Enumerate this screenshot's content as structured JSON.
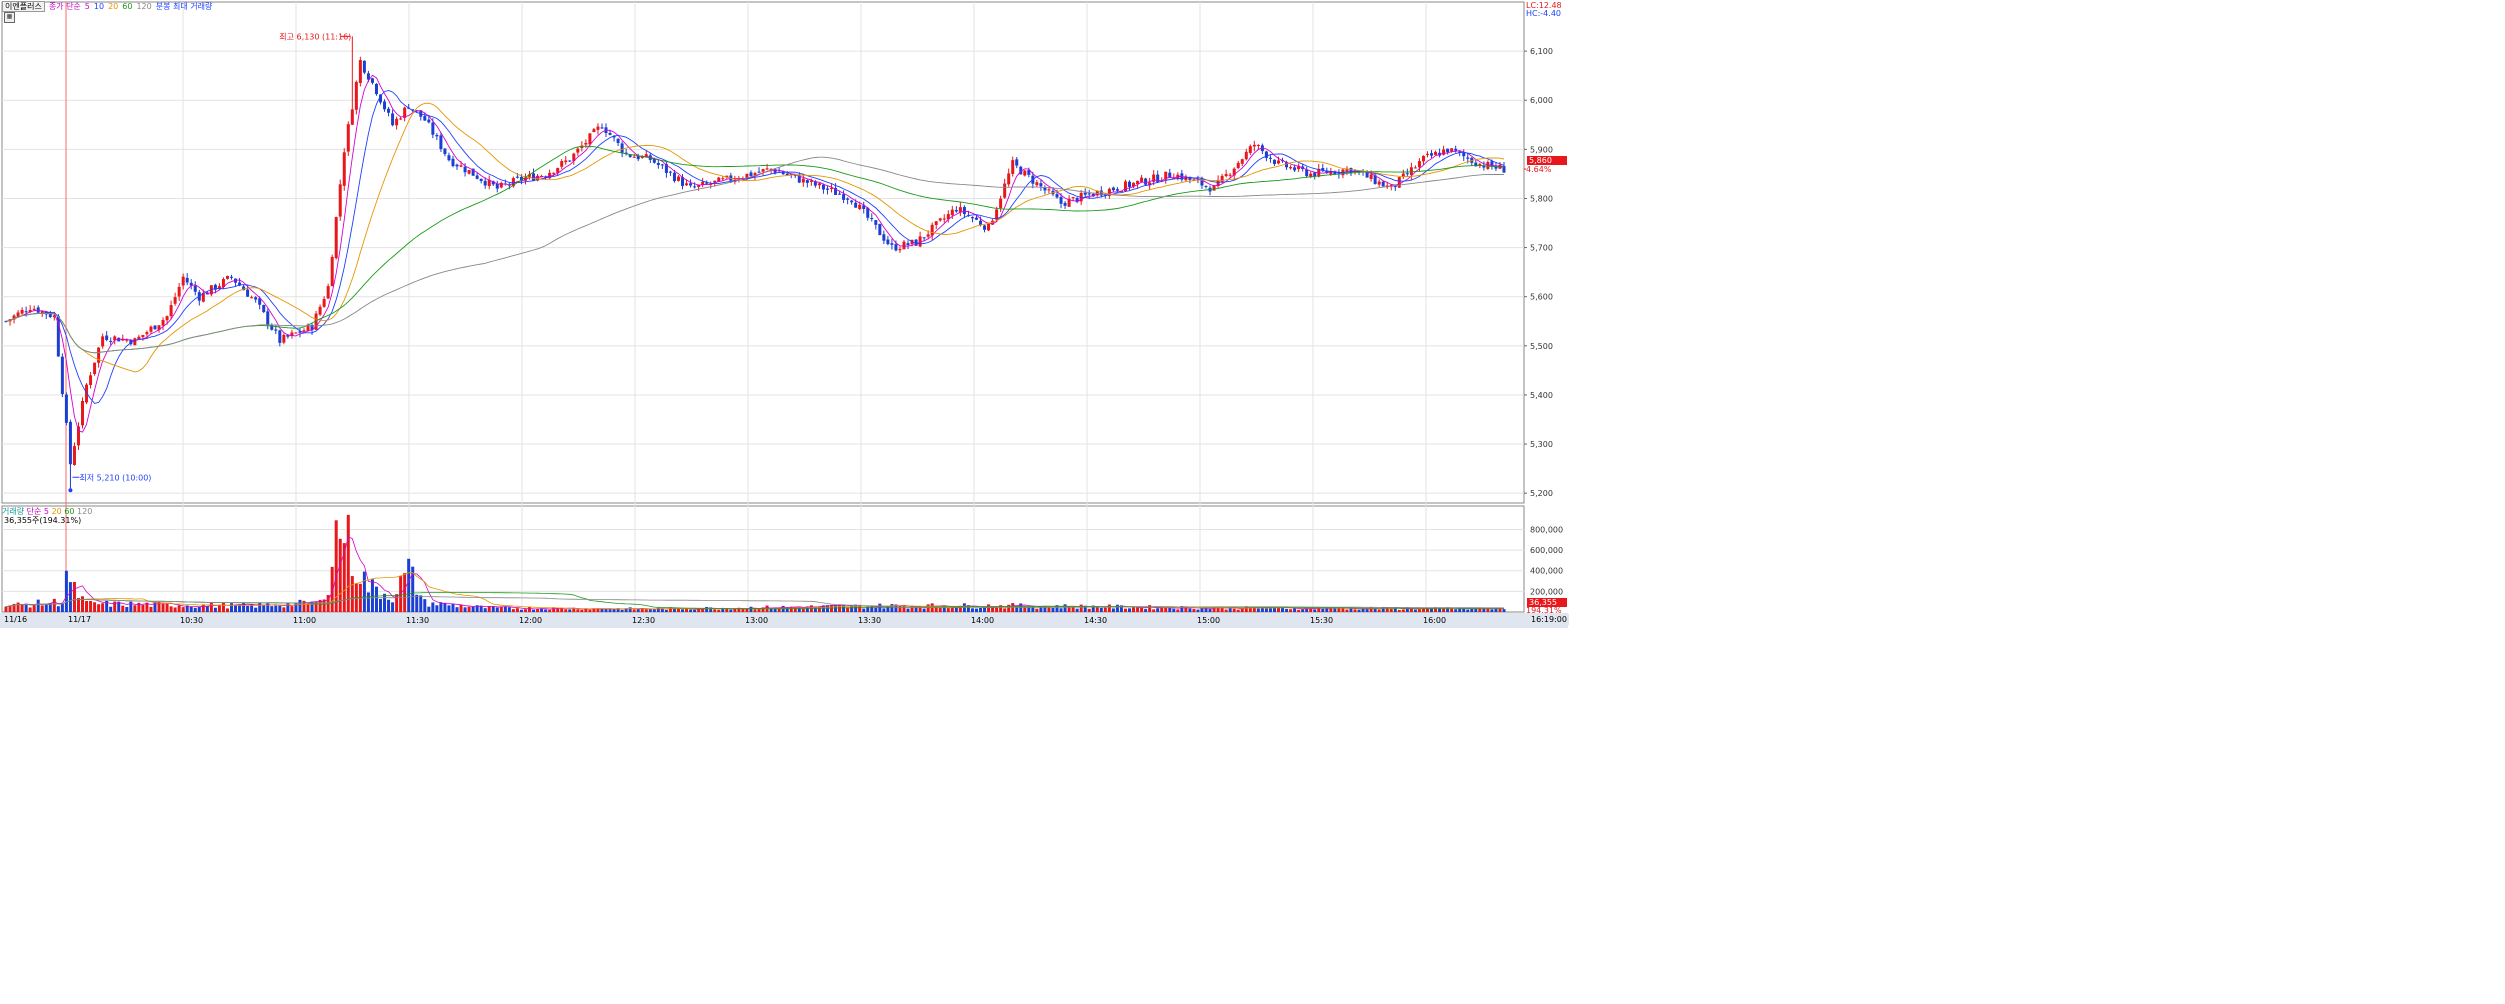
{
  "header": {
    "stock_name": "이엔플러스",
    "indicator_label": "종가 단순",
    "ma5": "5",
    "ma10": "10",
    "ma20": "20",
    "ma60": "60",
    "ma120": "120",
    "extra_label": "분봉 최대 거래량"
  },
  "right_info": {
    "lc": "LC:12.48",
    "hc": "HC:-4.40"
  },
  "current_price": {
    "price": "5,860",
    "change": "4.64%"
  },
  "annotations": {
    "high": "최고 6,130 (11:16)",
    "low": "최저 5,210 (10:00)"
  },
  "volume_header": {
    "label": "거래량",
    "indicator": "단순",
    "ma5": "5",
    "ma20": "20",
    "ma60": "60",
    "ma120": "120",
    "current": "36,355주(194.31%)"
  },
  "volume_badge": {
    "value": "36,355",
    "pct": "194.31%"
  },
  "x_axis": {
    "date_start": "11/16",
    "date_next": "11/17",
    "end_time": "16:19:00",
    "times": [
      "10:30",
      "11:00",
      "11:30",
      "12:00",
      "12:30",
      "13:00",
      "13:30",
      "14:00",
      "14:30",
      "15:00",
      "15:30",
      "16:00"
    ]
  },
  "colors": {
    "up": "#e8171b",
    "down": "#1a3fd1",
    "ma5": "#d400d4",
    "ma10": "#1f3fff",
    "ma20": "#e69500",
    "ma60": "#1a9a1a",
    "ma120": "#888888"
  },
  "chart_data": {
    "type": "candlestick",
    "price_axis": {
      "ticks": [
        5200,
        5300,
        5400,
        5500,
        5600,
        5700,
        5800,
        5900,
        6000,
        6100
      ],
      "labels": [
        "5,200",
        "5,300",
        "5,400",
        "5,500",
        "5,600",
        "5,700",
        "5,800",
        "5,900",
        "6,000",
        "6,100"
      ],
      "range": [
        5180,
        6200
      ]
    },
    "volume_axis": {
      "ticks": [
        200000,
        400000,
        600000,
        800000
      ],
      "labels": [
        "200,000",
        "400,000",
        "600,000",
        "800,000"
      ],
      "range": [
        0,
        950000
      ]
    },
    "high": 6130,
    "low": 5210,
    "price_keypoints": [
      [
        0,
        5550
      ],
      [
        6,
        5580
      ],
      [
        12,
        5560
      ],
      [
        16,
        5260
      ],
      [
        20,
        5420
      ],
      [
        24,
        5520
      ],
      [
        32,
        5510
      ],
      [
        40,
        5560
      ],
      [
        44,
        5640
      ],
      [
        48,
        5600
      ],
      [
        56,
        5640
      ],
      [
        62,
        5590
      ],
      [
        68,
        5510
      ],
      [
        76,
        5540
      ],
      [
        80,
        5620
      ],
      [
        84,
        5900
      ],
      [
        88,
        6080
      ],
      [
        92,
        6020
      ],
      [
        96,
        5950
      ],
      [
        100,
        5990
      ],
      [
        104,
        5960
      ],
      [
        110,
        5880
      ],
      [
        116,
        5850
      ],
      [
        122,
        5820
      ],
      [
        128,
        5840
      ],
      [
        134,
        5850
      ],
      [
        140,
        5880
      ],
      [
        148,
        5950
      ],
      [
        154,
        5890
      ],
      [
        160,
        5880
      ],
      [
        170,
        5820
      ],
      [
        180,
        5840
      ],
      [
        190,
        5860
      ],
      [
        200,
        5830
      ],
      [
        210,
        5800
      ],
      [
        220,
        5700
      ],
      [
        226,
        5710
      ],
      [
        236,
        5780
      ],
      [
        244,
        5740
      ],
      [
        250,
        5870
      ],
      [
        256,
        5830
      ],
      [
        262,
        5790
      ],
      [
        270,
        5810
      ],
      [
        280,
        5830
      ],
      [
        290,
        5850
      ],
      [
        300,
        5820
      ],
      [
        310,
        5910
      ],
      [
        316,
        5870
      ],
      [
        324,
        5850
      ],
      [
        334,
        5860
      ],
      [
        344,
        5820
      ],
      [
        352,
        5880
      ],
      [
        358,
        5900
      ],
      [
        366,
        5870
      ],
      [
        372,
        5860
      ]
    ],
    "volume_keypoints": [
      [
        0,
        60000
      ],
      [
        14,
        100000
      ],
      [
        15,
        420000
      ],
      [
        16,
        250000
      ],
      [
        20,
        80000
      ],
      [
        40,
        70000
      ],
      [
        60,
        60000
      ],
      [
        78,
        90000
      ],
      [
        80,
        300000
      ],
      [
        82,
        750000
      ],
      [
        84,
        850000
      ],
      [
        86,
        500000
      ],
      [
        90,
        250000
      ],
      [
        96,
        150000
      ],
      [
        100,
        400000
      ],
      [
        104,
        90000
      ],
      [
        120,
        40000
      ],
      [
        160,
        30000
      ],
      [
        220,
        60000
      ],
      [
        250,
        60000
      ],
      [
        300,
        40000
      ],
      [
        372,
        30000
      ]
    ]
  }
}
